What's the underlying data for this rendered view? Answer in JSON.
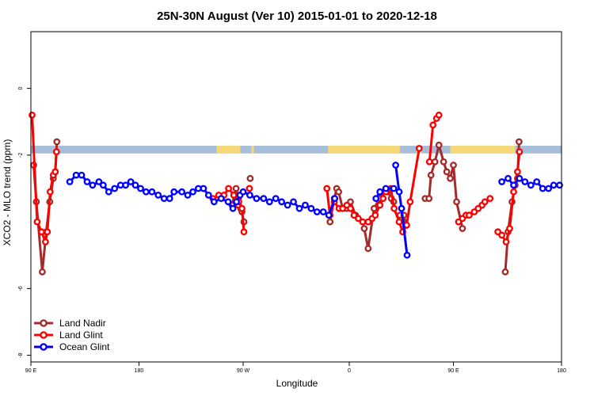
{
  "chart_data": {
    "type": "line",
    "title": "25N-30N August (Ver 10)   2015-01-01 to 2020-12-18",
    "xlabel": "Longitude",
    "ylabel": "XCO2 - MLO trend (ppm)",
    "xlim": [
      -90,
      180
    ],
    "ylim": [
      -8.2,
      1.7
    ],
    "x_ticks": [
      {
        "value": -90,
        "label": "90 E"
      },
      {
        "value": -35,
        "label": "180"
      },
      {
        "value": 18,
        "label": "90 W"
      },
      {
        "value": 72,
        "label": "0"
      },
      {
        "value": 125,
        "label": "90 E"
      },
      {
        "value": 180,
        "label": "180"
      }
    ],
    "y_ticks": [
      {
        "value": 0,
        "label": "0"
      },
      {
        "value": -2,
        "label": "-2"
      },
      {
        "value": -6,
        "label": "-6"
      },
      {
        "value": -8,
        "label": "-8"
      }
    ],
    "grid": false,
    "legend_position": "bottom-left",
    "land_ocean_band": {
      "y_top": -1.72,
      "y_bottom": -1.95,
      "ocean_color": "#a7bedb",
      "land_color": "#f6d878",
      "land_segments": [
        [
          4.6,
          16.6
        ],
        [
          22.2,
          23.5
        ],
        [
          61.2,
          97.7
        ],
        [
          106.3,
          108.8
        ],
        [
          123.4,
          156.4
        ]
      ]
    },
    "series": [
      {
        "name": "Land Nadir",
        "color": "#a52a2a",
        "segments": [
          {
            "x": [
              -88.6,
              -87.2,
              -84.2,
              -82.2,
              -80.4,
              -78.6,
              -77.6,
              -76.8
            ],
            "y": [
              -2.3,
              -3.4,
              -5.5,
              -4.3,
              -3.4,
              -2.7,
              -2.5,
              -1.6
            ]
          },
          {
            "x": [
              12.3,
              14.4,
              15.6,
              16.8,
              17.4,
              18.4
            ],
            "y": [
              -3.5,
              -3.0,
              -3.3,
              -3.6,
              -3.7,
              -4.0
            ]
          },
          {
            "x": [
              21.6
            ],
            "y": [
              -2.7
            ]
          },
          {
            "x": [
              62.2,
              64.4,
              65.6,
              66.6,
              68.6,
              70.6,
              72.6,
              75.2
            ],
            "y": [
              -4.0,
              -3.3,
              -3.0,
              -3.1,
              -3.6,
              -3.6,
              -3.4,
              -3.8
            ]
          },
          {
            "x": [
              79.6,
              81.6,
              84.6,
              87.4,
              89.6,
              91.6,
              93.4,
              94.6
            ],
            "y": [
              -4.2,
              -4.8,
              -3.6,
              -3.3,
              -3.1,
              -3.1,
              -3.3,
              -3.4
            ]
          },
          {
            "x": [
              97.8,
              99.8,
              101.0
            ],
            "y": [
              -3.8,
              -3.8,
              -4.1
            ]
          },
          {
            "x": [
              110.6,
              112.6,
              113.6,
              115.6,
              117.6,
              120.0,
              121.6,
              123.4,
              125.0,
              126.6,
              129.6
            ],
            "y": [
              -3.3,
              -3.3,
              -2.6,
              -2.2,
              -1.7,
              -2.2,
              -2.5,
              -2.7,
              -2.3,
              -3.4,
              -4.2
            ]
          },
          {
            "x": [
              151.4,
              152.8,
              154.8,
              156.4,
              157.6,
              158.4
            ],
            "y": [
              -5.5,
              -4.3,
              -3.4,
              -2.9,
              -2.7,
              -1.6
            ]
          }
        ]
      },
      {
        "name": "Land Glint",
        "color": "#ff0000",
        "segments": [
          {
            "x": [
              -89.4,
              -86.8,
              -84.6,
              -82.6,
              -81.6,
              -80.2,
              -78.6,
              -77.6,
              -77.0
            ],
            "y": [
              -0.8,
              -4.0,
              -4.3,
              -4.6,
              -4.3,
              -3.1,
              -2.6,
              -2.5,
              -1.9
            ]
          },
          {
            "x": [
              2.6,
              5.6,
              8.2,
              10.6,
              13.4,
              15.6
            ],
            "y": [
              -3.3,
              -3.2,
              -3.2,
              -3.0,
              -3.2,
              -3.5
            ]
          },
          {
            "x": [
              13.2,
              15.8,
              17.4,
              18.4
            ],
            "y": [
              -3.2,
              -3.4,
              -3.6,
              -4.3
            ]
          },
          {
            "x": [
              21.2
            ],
            "y": [
              -3.0
            ]
          },
          {
            "x": [
              60.6,
              62.2,
              64.4,
              66.8,
              68.6,
              70.8,
              72.6,
              74.4,
              76.6,
              78.8,
              81.6,
              83.6,
              85.2,
              87.6,
              89.2
            ],
            "y": [
              -3.0,
              -3.8,
              -3.4,
              -3.6,
              -3.6,
              -3.5,
              -3.6,
              -3.8,
              -3.9,
              -4.0,
              -4.0,
              -3.9,
              -3.8,
              -3.5,
              -3.3
            ]
          },
          {
            "x": [
              90.6,
              93.2,
              94.8,
              97.4,
              99.2,
              101.2,
              103.0,
              107.6
            ],
            "y": [
              -3.1,
              -3.0,
              -3.6,
              -4.0,
              -4.3,
              -4.1,
              -3.4,
              -1.8
            ]
          },
          {
            "x": [
              112.8,
              114.6,
              116.4,
              117.6
            ],
            "y": [
              -2.2,
              -1.1,
              -0.9,
              -0.8
            ]
          },
          {
            "x": [
              127.6,
              129.6,
              131.4,
              133.0,
              135.6,
              137.6,
              139.6,
              141.0,
              143.6
            ],
            "y": [
              -4.0,
              -3.9,
              -3.8,
              -3.8,
              -3.7,
              -3.6,
              -3.5,
              -3.4,
              -3.3
            ]
          },
          {
            "x": [
              147.6,
              149.6,
              151.8,
              153.6,
              155.6,
              157.6,
              158.6
            ],
            "y": [
              -4.3,
              -4.4,
              -4.6,
              -4.2,
              -3.1,
              -2.5,
              -1.9
            ]
          }
        ]
      },
      {
        "name": "Ocean Glint",
        "color": "#0000ff",
        "segments": [
          {
            "x": [
              -70.2,
              -67.0,
              -64.2,
              -61.4,
              -58.6,
              -55.4,
              -53.2,
              -50.4,
              -47.4,
              -44.4,
              -41.8,
              -39.2,
              -36.8,
              -34.2,
              -31.4,
              -28.4,
              -25.2,
              -22.2,
              -19.4,
              -17.2,
              -13.2,
              -10.2,
              -7.6,
              -4.8,
              -2.2,
              0.4,
              3.2,
              6.8,
              10.4,
              12.8,
              14.6,
              16.4,
              18.0,
              21.4,
              24.8,
              28.4,
              31.4,
              34.6,
              37.6,
              40.6,
              43.6,
              46.6,
              49.6,
              52.6,
              55.6,
              58.8
            ],
            "y": [
              -2.8,
              -2.6,
              -2.6,
              -2.8,
              -2.9,
              -2.8,
              -2.9,
              -3.1,
              -3.0,
              -2.9,
              -2.9,
              -2.8,
              -2.9,
              -3.0,
              -3.1,
              -3.1,
              -3.2,
              -3.3,
              -3.3,
              -3.1,
              -3.1,
              -3.2,
              -3.1,
              -3.0,
              -3.0,
              -3.2,
              -3.4,
              -3.3,
              -3.4,
              -3.6,
              -3.4,
              -3.2,
              -3.1,
              -3.2,
              -3.3,
              -3.3,
              -3.4,
              -3.3,
              -3.4,
              -3.5,
              -3.4,
              -3.6,
              -3.5,
              -3.6,
              -3.7,
              -3.7
            ]
          },
          {
            "x": [
              61.6,
              64.6
            ],
            "y": [
              -3.8,
              -3.3
            ]
          },
          {
            "x": [
              85.6,
              87.6,
              90.6,
              94.6
            ],
            "y": [
              -3.3,
              -3.1,
              -3.0,
              -3.0
            ]
          },
          {
            "x": [
              95.6,
              97.4,
              98.6,
              101.4
            ],
            "y": [
              -2.3,
              -3.1,
              -3.6,
              -5.0
            ]
          },
          {
            "x": [
              149.6,
              152.8,
              155.6,
              158.6,
              161.4,
              164.4,
              167.4,
              170.4,
              173.4,
              176.0,
              179.0
            ],
            "y": [
              -2.8,
              -2.7,
              -2.9,
              -2.7,
              -2.8,
              -2.9,
              -2.8,
              -3.0,
              -3.0,
              -2.9,
              -2.9
            ]
          }
        ]
      }
    ]
  }
}
